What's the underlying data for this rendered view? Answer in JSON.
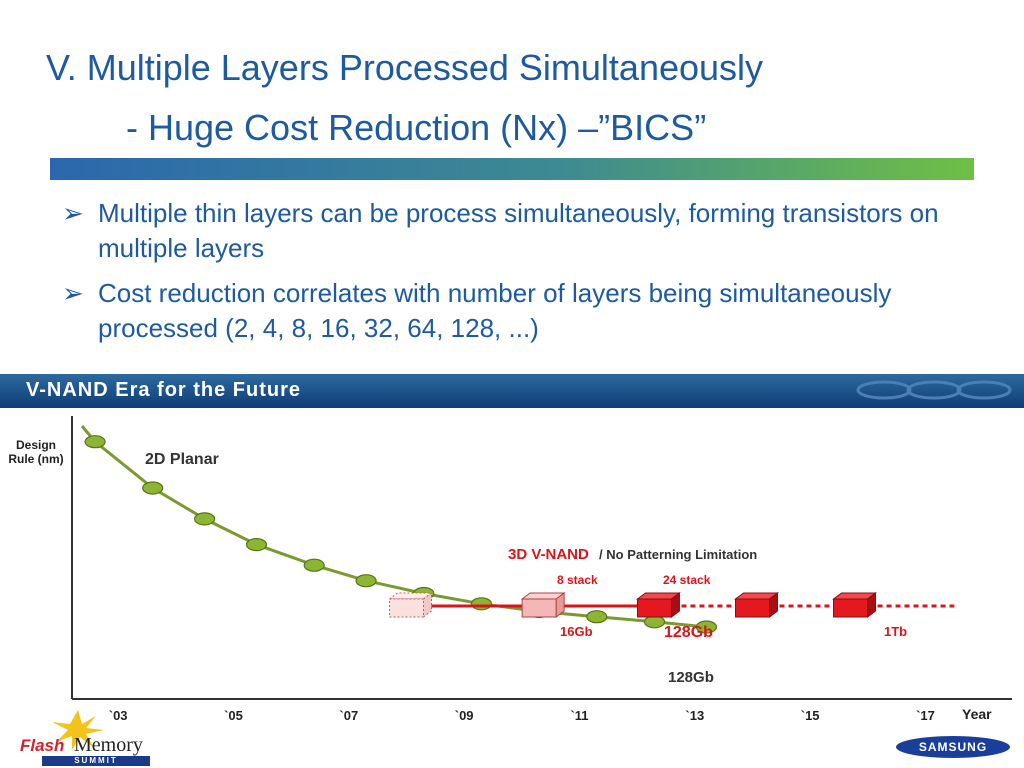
{
  "slide": {
    "title": "V. Multiple Layers Processed Simultaneously",
    "subtitle": "-  Huge Cost Reduction (Nx) –”BICS”",
    "bullets": [
      "Multiple thin layers can be process simultaneously, forming transistors on multiple layers",
      "Cost reduction correlates with number of layers being simultaneously processed (2, 4, 8, 16, 32, 64, 128, ...)"
    ],
    "bullet_glyph": "➢"
  },
  "figure": {
    "banner": "V-NAND Era for the Future",
    "flash_logo": {
      "flash": "Flash",
      "memory": "Memory",
      "summit": "SUMMIT"
    },
    "samsung": "SAMSUNG"
  },
  "chart_data": {
    "type": "line",
    "ylabel": "Design Rule (nm)",
    "xlabel": "Year",
    "x_ticks": [
      "`03",
      "`05",
      "`07",
      "`09",
      "`11",
      "`13",
      "`15",
      "`17"
    ],
    "xlim": [
      2002.2,
      2018.5
    ],
    "series": [
      {
        "name": "2D Planar",
        "color": "#7a9a30",
        "x": [
          2002.6,
          2003.6,
          2004.5,
          2005.4,
          2006.4,
          2007.3,
          2008.3,
          2009.3,
          2010.3,
          2011.3,
          2012.3,
          2013.2
        ],
        "y": [
          100,
          82,
          70,
          60,
          52,
          46,
          41,
          37,
          34,
          32,
          30,
          28
        ]
      },
      {
        "name": "3D V-NAND",
        "color": "#d9151b",
        "x": [
          2008.0,
          2010.3,
          2012.3,
          2014.0,
          2015.7,
          2017.5
        ],
        "style": [
          "dotted-box",
          "light",
          "solid",
          "solid",
          "solid"
        ],
        "segments": [
          "solid",
          "solid",
          "dashed",
          "dashed",
          "dashed"
        ]
      }
    ],
    "annotations": {
      "planar_label": "2D Planar",
      "planar_end": "128Gb",
      "vnand_title": "3D V-NAND",
      "vnand_note": "/ No Patterning Limitation",
      "stack_8": "8 stack",
      "stack_24": "24 stack",
      "cap_16gb": "16Gb",
      "cap_128gb": "128Gb",
      "cap_1tb": "1Tb"
    }
  }
}
